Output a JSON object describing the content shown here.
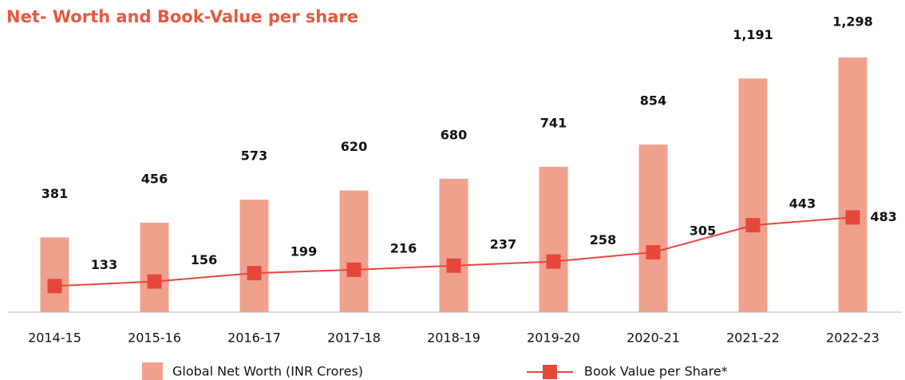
{
  "chart_data": {
    "type": "bar",
    "title": "Net- Worth and Book-Value per share",
    "categories": [
      "2014-15",
      "2015-16",
      "2016-17",
      "2017-18",
      "2018-19",
      "2019-20",
      "2020-21",
      "2021-22",
      "2022-23"
    ],
    "series": [
      {
        "name": "Global Net Worth (INR Crores)",
        "type": "bar",
        "color": "#f0a18e",
        "values": [
          381,
          456,
          573,
          620,
          680,
          741,
          854,
          1191,
          1298
        ],
        "value_labels": [
          "381",
          "456",
          "573",
          "620",
          "680",
          "741",
          "854",
          "1,191",
          "1,298"
        ]
      },
      {
        "name": "Book Value per Share*",
        "type": "line",
        "color": "#e5483a",
        "values": [
          133,
          156,
          199,
          216,
          237,
          258,
          305,
          443,
          483
        ]
      }
    ],
    "ylim": [
      0,
      1300
    ]
  }
}
